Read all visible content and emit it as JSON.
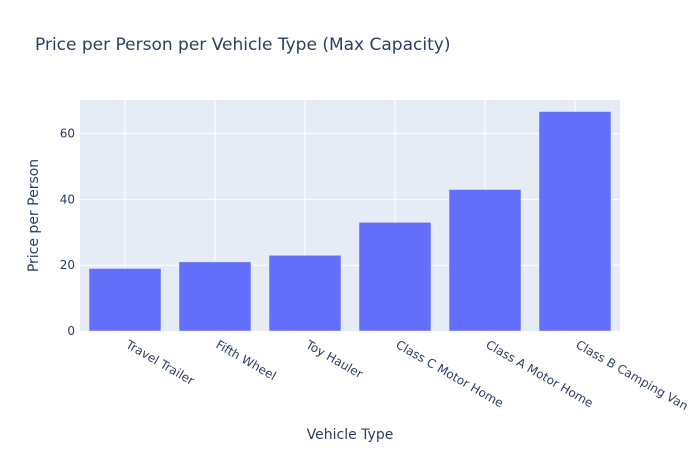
{
  "chart_data": {
    "type": "bar",
    "title": "Price per Person per Vehicle Type (Max Capacity)",
    "xlabel": "Vehicle Type",
    "ylabel": "Price per Person",
    "categories": [
      "Travel Trailer",
      "Fifth Wheel",
      "Toy Hauler",
      "Class C Motor Home",
      "Class A Motor Home",
      "Class B Camping Van"
    ],
    "values": [
      19,
      21,
      23,
      33,
      43,
      66.7
    ],
    "ylim": [
      0,
      70.2
    ],
    "yticks": [
      0,
      20,
      40,
      60
    ],
    "grid": true,
    "legend": "none",
    "colors": {
      "bar": "#636efa",
      "plot_bg": "#e5ecf6",
      "grid": "#ffffff",
      "text": "#2a3f5f"
    }
  }
}
